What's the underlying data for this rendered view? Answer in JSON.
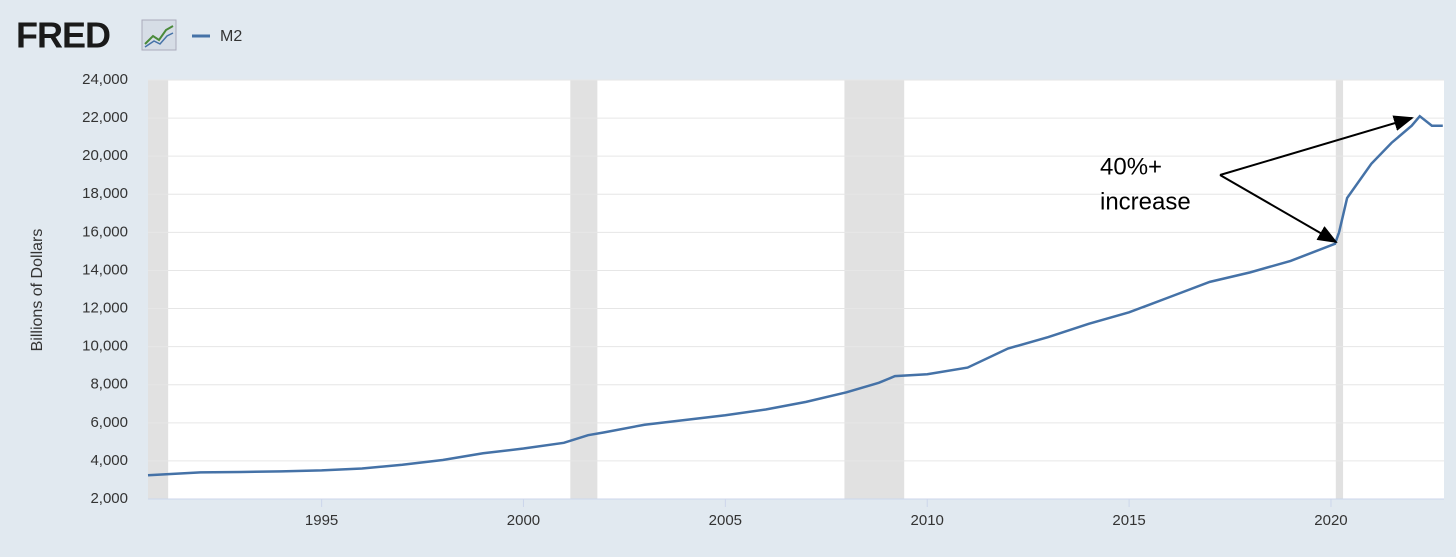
{
  "logo": "FRED",
  "chart_data": {
    "type": "line",
    "y_label": "Billions of Dollars",
    "annotation": [
      "40%+",
      "increase"
    ],
    "x": [
      1990.7,
      1992,
      1993,
      1994,
      1995,
      1996,
      1997,
      1998,
      1999,
      2000,
      2001,
      2001.6,
      2002,
      2003,
      2004,
      2005,
      2006,
      2007,
      2008,
      2008.8,
      2009.2,
      2010,
      2011,
      2012,
      2013,
      2014,
      2015,
      2016,
      2017,
      2018,
      2019,
      2020.1,
      2020.2,
      2020.4,
      2021,
      2021.5,
      2022.0,
      2022.2,
      2022.5,
      2022.77
    ],
    "series": [
      {
        "name": "M2",
        "color": "#4572a7",
        "values": [
          3250,
          3400,
          3420,
          3450,
          3500,
          3600,
          3800,
          4050,
          4400,
          4650,
          4950,
          5350,
          5500,
          5900,
          6150,
          6400,
          6700,
          7100,
          7600,
          8100,
          8450,
          8550,
          8900,
          9900,
          10500,
          11200,
          11800,
          12600,
          13400,
          13900,
          14500,
          15400,
          16000,
          17800,
          19600,
          20700,
          21600,
          22100,
          21600,
          21600
        ]
      }
    ],
    "recessions": [
      [
        1990.7,
        1991.2
      ],
      [
        2001.16,
        2001.83
      ],
      [
        2007.95,
        2009.43
      ],
      [
        2020.12,
        2020.3
      ]
    ],
    "xlim": [
      1990.7,
      2022.8
    ],
    "xticks": [
      1995,
      2000,
      2005,
      2010,
      2015,
      2020
    ],
    "ylim": [
      2000,
      24000
    ],
    "yticks": [
      {
        "value": 2000,
        "label": "2,000"
      },
      {
        "value": 4000,
        "label": "4,000"
      },
      {
        "value": 6000,
        "label": "6,000"
      },
      {
        "value": 8000,
        "label": "8,000"
      },
      {
        "value": 10000,
        "label": "10,000"
      },
      {
        "value": 12000,
        "label": "12,000"
      },
      {
        "value": 14000,
        "label": "14,000"
      },
      {
        "value": 16000,
        "label": "16,000"
      },
      {
        "value": 18000,
        "label": "18,000"
      },
      {
        "value": 20000,
        "label": "20,000"
      },
      {
        "value": 22000,
        "label": "22,000"
      },
      {
        "value": 24000,
        "label": "24,000"
      }
    ],
    "grid": true,
    "recession_color": "#e1e1e1"
  }
}
